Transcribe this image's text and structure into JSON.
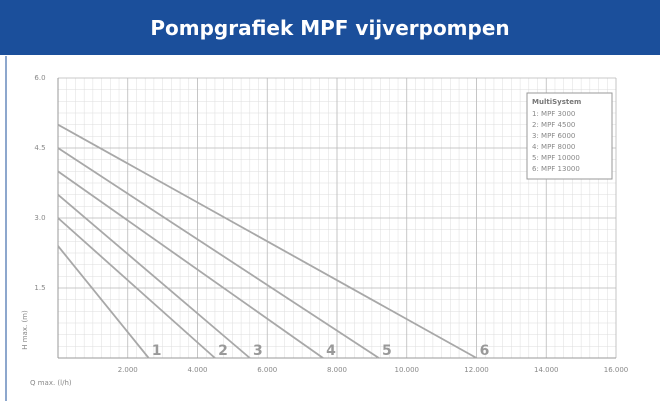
{
  "header": {
    "title": "Pompgrafiek MPF vijverpompen"
  },
  "chart_data": {
    "type": "line",
    "xlabel": "Q max. (l/h)",
    "ylabel": "H max. (m)",
    "xlim": [
      0,
      16000
    ],
    "ylim": [
      0,
      6
    ],
    "xticks": [
      {
        "value": 2000,
        "label": "2.000"
      },
      {
        "value": 4000,
        "label": "4.000"
      },
      {
        "value": 6000,
        "label": "6.000"
      },
      {
        "value": 8000,
        "label": "8.000"
      },
      {
        "value": 10000,
        "label": "10.000"
      },
      {
        "value": 12000,
        "label": "12.000"
      },
      {
        "value": 14000,
        "label": "14.000"
      },
      {
        "value": 16000,
        "label": "16.000"
      }
    ],
    "yticks": [
      1.5,
      {
        "value": 3,
        "label": "3.0"
      },
      4.5,
      {
        "value": 6,
        "label": "6.0"
      }
    ],
    "grid": true,
    "legend_title": "MultiSystem",
    "legend": "upper right",
    "series": [
      {
        "name": "1: MPF 3000",
        "label": "1",
        "color": "#a8a8a8",
        "x": [
          0,
          2600
        ],
        "values": [
          2.4,
          0
        ]
      },
      {
        "name": "2: MPF 4500",
        "label": "2",
        "color": "#a8a8a8",
        "x": [
          0,
          4500
        ],
        "values": [
          3.0,
          0
        ]
      },
      {
        "name": "3: MPF 6000",
        "label": "3",
        "color": "#a8a8a8",
        "x": [
          0,
          5500
        ],
        "values": [
          3.5,
          0
        ]
      },
      {
        "name": "4: MPF 8000",
        "label": "4",
        "color": "#a8a8a8",
        "x": [
          0,
          7600
        ],
        "values": [
          4.0,
          0
        ]
      },
      {
        "name": "5: MPF 10000",
        "label": "5",
        "color": "#a8a8a8",
        "x": [
          0,
          9200
        ],
        "values": [
          4.5,
          0
        ]
      },
      {
        "name": "6: MPF 13000",
        "label": "6",
        "color": "#a8a8a8",
        "x": [
          0,
          12000
        ],
        "values": [
          5.0,
          0
        ]
      }
    ]
  }
}
